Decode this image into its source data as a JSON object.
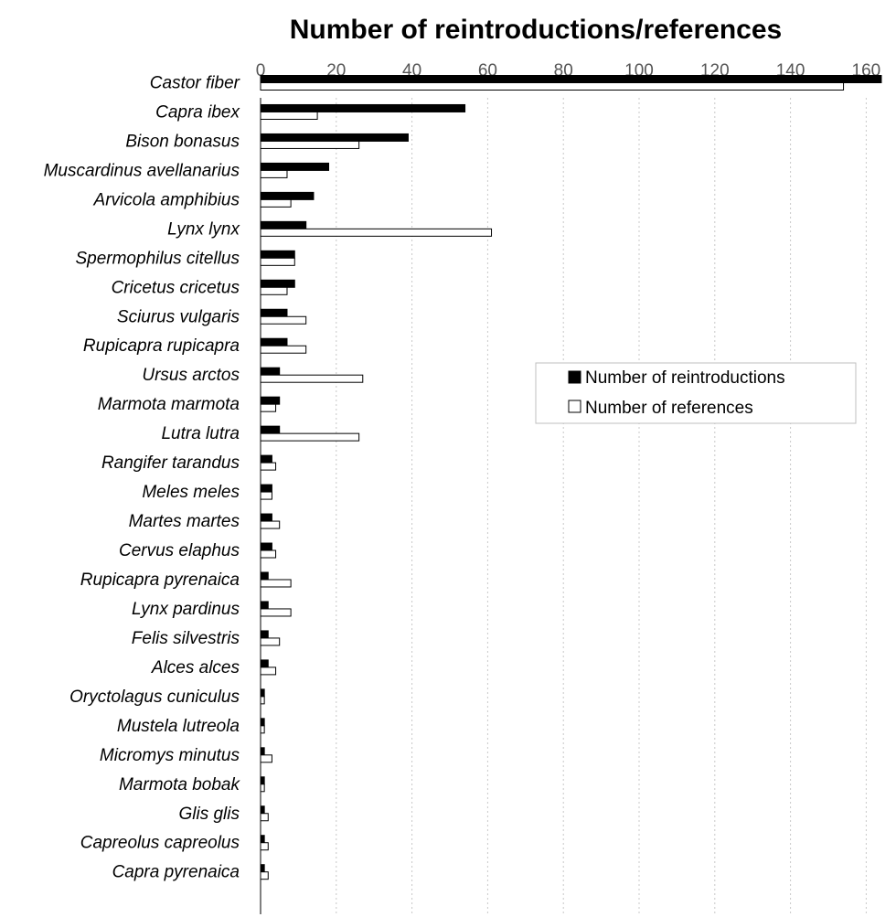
{
  "chart_data": {
    "type": "bar",
    "orientation": "horizontal",
    "title": "Number of reintroductions/references",
    "xlim": [
      0,
      165
    ],
    "x_ticks": [
      "0",
      "20",
      "40",
      "60",
      "80",
      "100",
      "120",
      "140",
      "160"
    ],
    "x_axis_position": "top",
    "grid": "vertical dotted",
    "legend_position": "right-middle",
    "categories": [
      "Castor fiber",
      "Capra ibex",
      "Bison bonasus",
      "Muscardinus avellanarius",
      "Arvicola amphibius",
      "Lynx lynx",
      "Spermophilus citellus",
      "Cricetus cricetus",
      "Sciurus vulgaris",
      "Rupicapra rupicapra",
      "Ursus arctos",
      "Marmota marmota",
      "Lutra lutra",
      "Rangifer tarandus",
      "Meles meles",
      "Martes martes",
      "Cervus elaphus",
      "Rupicapra pyrenaica",
      "Lynx pardinus",
      "Felis silvestris",
      "Alces alces",
      "Oryctolagus cuniculus",
      "Mustela lutreola",
      "Micromys minutus",
      "Marmota bobak",
      "Glis glis",
      "Capreolus capreolus",
      "Capra pyrenaica"
    ],
    "series": [
      {
        "name": "Number of reintroductions",
        "color": "#000000",
        "values": [
          164,
          54,
          39,
          18,
          14,
          12,
          9,
          9,
          7,
          7,
          5,
          5,
          5,
          3,
          3,
          3,
          3,
          2,
          2,
          2,
          2,
          1,
          1,
          1,
          1,
          1,
          1,
          1
        ]
      },
      {
        "name": "Number of references",
        "color": "#ffffff",
        "values": [
          154,
          15,
          26,
          7,
          8,
          61,
          9,
          7,
          12,
          12,
          27,
          4,
          26,
          4,
          3,
          5,
          4,
          8,
          8,
          5,
          4,
          1,
          1,
          3,
          1,
          2,
          2,
          2
        ]
      }
    ]
  }
}
